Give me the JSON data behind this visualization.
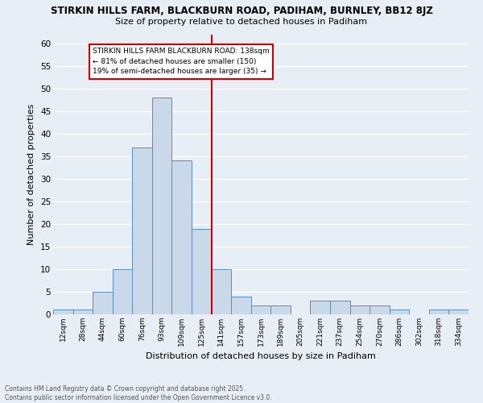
{
  "title1": "STIRKIN HILLS FARM, BLACKBURN ROAD, PADIHAM, BURNLEY, BB12 8JZ",
  "title2": "Size of property relative to detached houses in Padiham",
  "xlabel": "Distribution of detached houses by size in Padiham",
  "ylabel": "Number of detached properties",
  "bin_labels": [
    "12sqm",
    "28sqm",
    "44sqm",
    "60sqm",
    "76sqm",
    "93sqm",
    "109sqm",
    "125sqm",
    "141sqm",
    "157sqm",
    "173sqm",
    "189sqm",
    "205sqm",
    "221sqm",
    "237sqm",
    "254sqm",
    "270sqm",
    "286sqm",
    "302sqm",
    "318sqm",
    "334sqm"
  ],
  "bar_values": [
    1,
    1,
    5,
    10,
    37,
    48,
    34,
    19,
    10,
    4,
    2,
    2,
    0,
    3,
    3,
    2,
    2,
    1,
    0,
    1,
    1
  ],
  "bar_color": "#c9d9ea",
  "bar_edge_color": "#5b8db8",
  "background_color": "#e8eef5",
  "grid_color": "#ffffff",
  "vline_x_idx": 7.5,
  "vline_color": "#cc0000",
  "annotation_text": "STIRKIN HILLS FARM BLACKBURN ROAD: 138sqm\n← 81% of detached houses are smaller (150)\n19% of semi-detached houses are larger (35) →",
  "annotation_box_color": "#ffffff",
  "annotation_box_edge": "#cc0000",
  "footnote": "Contains HM Land Registry data © Crown copyright and database right 2025.\nContains public sector information licensed under the Open Government Licence v3.0.",
  "ylim": [
    0,
    62
  ],
  "yticks": [
    0,
    5,
    10,
    15,
    20,
    25,
    30,
    35,
    40,
    45,
    50,
    55,
    60
  ],
  "num_bins": 21
}
